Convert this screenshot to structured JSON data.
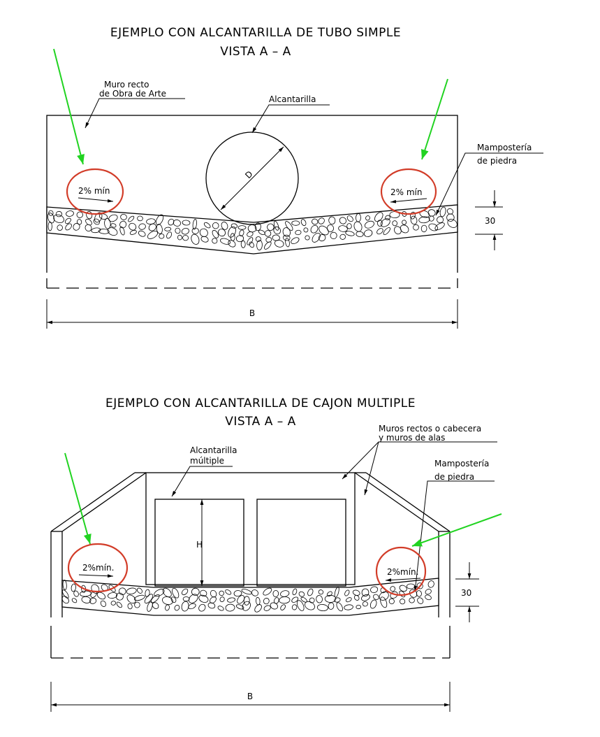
{
  "diagram1": {
    "title": "EJEMPLO CON ALCANTARILLA DE TUBO SIMPLE",
    "subtitle": "VISTA A – A",
    "label_wall_1": "Muro recto",
    "label_wall_2": "de Obra de Arte",
    "label_culvert": "Alcantarilla",
    "label_diameter": "D",
    "label_masonry_1": "Mampostería",
    "label_masonry_2": "de piedra",
    "slope_left": "2% mín",
    "slope_right": "2% mín",
    "dim_thickness": "30",
    "dim_width": "B"
  },
  "diagram2": {
    "title": "EJEMPLO CON ALCANTARILLA DE CAJON MULTIPLE",
    "subtitle": "VISTA A – A",
    "label_walls_1": "Muros rectos o cabecera",
    "label_walls_2": "y muros de alas",
    "label_culvert_1": "Alcantarilla",
    "label_culvert_2": "múltiple",
    "label_masonry_1": "Mampostería",
    "label_masonry_2": "de piedra",
    "label_height": "H",
    "slope_left": "2%mín.",
    "slope_right": "2%mín.",
    "dim_thickness": "30",
    "dim_width": "B"
  },
  "colors": {
    "highlight_circle": "#d23c28",
    "annotation_arrow": "#21d321"
  }
}
